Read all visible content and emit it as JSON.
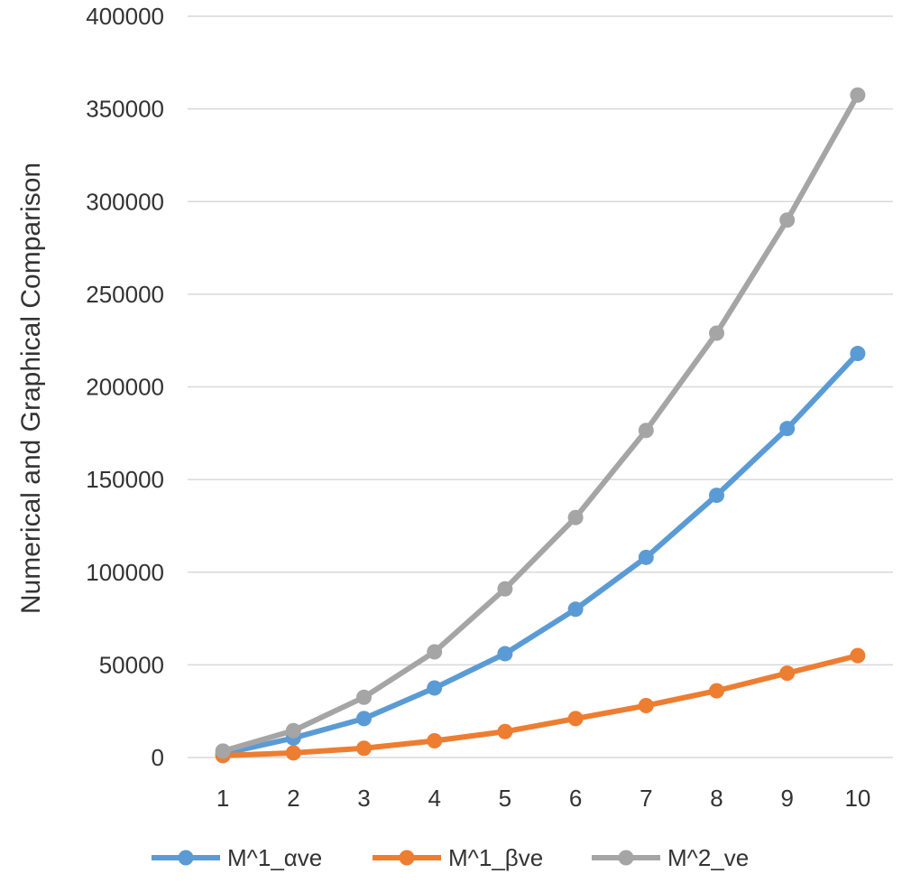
{
  "chart_data": {
    "type": "line",
    "title": "",
    "xlabel": "",
    "ylabel": "Numerical and Graphical Comparison",
    "categories": [
      "1",
      "2",
      "3",
      "4",
      "5",
      "6",
      "7",
      "8",
      "9",
      "10"
    ],
    "ylim": [
      0,
      400000
    ],
    "yticks": [
      0,
      50000,
      100000,
      150000,
      200000,
      250000,
      300000,
      350000,
      400000
    ],
    "ytick_labels": [
      "0",
      "50000",
      "100000",
      "150000",
      "200000",
      "250000",
      "300000",
      "350000",
      "400000"
    ],
    "grid": true,
    "legend_position": "bottom",
    "series": [
      {
        "name": "M^1_αve",
        "color": "#5B9BD5",
        "values": [
          2000,
          10500,
          21000,
          37500,
          56000,
          80000,
          108000,
          141500,
          177500,
          218000
        ]
      },
      {
        "name": "M^1_βve",
        "color": "#ED7D31",
        "values": [
          1000,
          2500,
          5000,
          9000,
          14000,
          21000,
          28000,
          36000,
          45500,
          55000
        ]
      },
      {
        "name": "M^2_ve",
        "color": "#A5A5A5",
        "values": [
          3500,
          14500,
          32500,
          57000,
          91000,
          129500,
          176500,
          229000,
          290000,
          357500
        ]
      }
    ]
  }
}
